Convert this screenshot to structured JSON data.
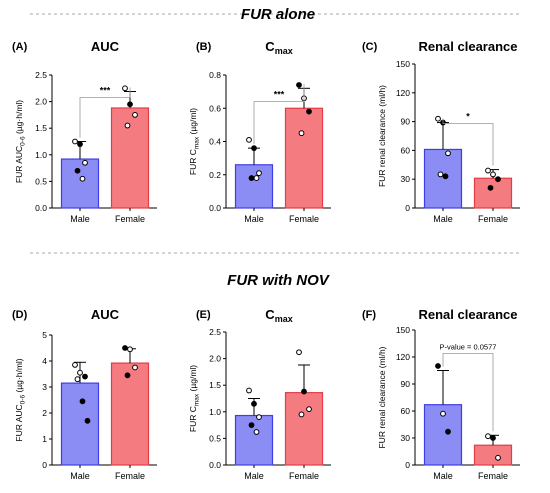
{
  "section_titles": [
    "FUR alone",
    "FUR with NOV"
  ],
  "colors": {
    "male_fill": "#8c8cf5",
    "male_edge": "#3e3ee6",
    "female_fill": "#f47c80",
    "female_edge": "#e53b44"
  },
  "chart_data": [
    {
      "type": "bar",
      "panel": "(A)",
      "title": "AUC",
      "title_sub": "",
      "ylabel_main": "FUR AUC",
      "ylabel_sub": "0-6",
      "ylabel_unit": " (µg·h/ml)",
      "categories": [
        "Male",
        "Female"
      ],
      "ylim": [
        0,
        2.5
      ],
      "yticks": [
        "0.0",
        "0.5",
        "1.0",
        "1.5",
        "2.0",
        "2.5"
      ],
      "values": [
        0.92,
        1.88
      ],
      "sd": [
        0.33,
        0.31
      ],
      "points": [
        [
          {
            "y": 1.25,
            "filled": false
          },
          {
            "y": 1.2,
            "filled": true
          },
          {
            "y": 0.85,
            "filled": false
          },
          {
            "y": 0.7,
            "filled": true
          },
          {
            "y": 0.55,
            "filled": false
          }
        ],
        [
          {
            "y": 2.25,
            "filled": false
          },
          {
            "y": 1.95,
            "filled": true
          },
          {
            "y": 1.75,
            "filled": false
          },
          {
            "y": 1.55,
            "filled": false
          }
        ]
      ],
      "sig": {
        "label": "***",
        "y": 2.08
      }
    },
    {
      "type": "bar",
      "panel": "(B)",
      "title": "C",
      "title_sub": "max",
      "ylabel_main": "FUR C",
      "ylabel_sub": "max",
      "ylabel_unit": " (µg/ml)",
      "categories": [
        "Male",
        "Female"
      ],
      "ylim": [
        0,
        0.8
      ],
      "yticks": [
        "0.0",
        "0.2",
        "0.4",
        "0.6",
        "0.8"
      ],
      "values": [
        0.26,
        0.6
      ],
      "sd": [
        0.1,
        0.12
      ],
      "points": [
        [
          {
            "y": 0.41,
            "filled": false
          },
          {
            "y": 0.36,
            "filled": true
          },
          {
            "y": 0.21,
            "filled": false
          },
          {
            "y": 0.18,
            "filled": true
          },
          {
            "y": 0.18,
            "filled": false
          }
        ],
        [
          {
            "y": 0.74,
            "filled": true
          },
          {
            "y": 0.66,
            "filled": false
          },
          {
            "y": 0.58,
            "filled": true
          },
          {
            "y": 0.45,
            "filled": false
          }
        ]
      ],
      "sig": {
        "label": "***",
        "y": 0.64
      }
    },
    {
      "type": "bar",
      "panel": "(C)",
      "title": "Renal clearance",
      "title_sub": "",
      "ylabel_main": "FUR renal clearance (ml/h)",
      "ylabel_sub": "",
      "ylabel_unit": "",
      "categories": [
        "Male",
        "Female"
      ],
      "ylim": [
        0,
        150
      ],
      "yticks": [
        "0",
        "30",
        "60",
        "90",
        "120",
        "150"
      ],
      "values": [
        61,
        31
      ],
      "sd": [
        28,
        9
      ],
      "points": [
        [
          {
            "y": 93,
            "filled": false
          },
          {
            "y": 89,
            "filled": true
          },
          {
            "y": 57,
            "filled": false
          },
          {
            "y": 35,
            "filled": false
          },
          {
            "y": 33,
            "filled": true
          }
        ],
        [
          {
            "y": 39,
            "filled": false
          },
          {
            "y": 35,
            "filled": false
          },
          {
            "y": 30,
            "filled": true
          },
          {
            "y": 21,
            "filled": true
          }
        ]
      ],
      "sig": {
        "label": "*",
        "y": 88
      }
    },
    {
      "type": "bar",
      "panel": "(D)",
      "title": "AUC",
      "title_sub": "",
      "ylabel_main": "FUR AUC",
      "ylabel_sub": "0-6",
      "ylabel_unit": " (µg·h/ml)",
      "categories": [
        "Male",
        "Female"
      ],
      "ylim": [
        0,
        5
      ],
      "yticks": [
        "0",
        "1",
        "2",
        "3",
        "4",
        "5"
      ],
      "values": [
        3.15,
        3.92
      ],
      "sd": [
        0.8,
        0.55
      ],
      "points": [
        [
          {
            "y": 3.85,
            "filled": false
          },
          {
            "y": 3.55,
            "filled": false
          },
          {
            "y": 3.4,
            "filled": true
          },
          {
            "y": 3.3,
            "filled": false
          },
          {
            "y": 2.45,
            "filled": true
          },
          {
            "y": 1.7,
            "filled": true
          }
        ],
        [
          {
            "y": 4.5,
            "filled": true
          },
          {
            "y": 4.45,
            "filled": false
          },
          {
            "y": 3.75,
            "filled": false
          },
          {
            "y": 3.45,
            "filled": true
          }
        ]
      ],
      "sig": null
    },
    {
      "type": "bar",
      "panel": "(E)",
      "title": "C",
      "title_sub": "max",
      "ylabel_main": "FUR C",
      "ylabel_sub": "max",
      "ylabel_unit": " (µg/ml)",
      "categories": [
        "Male",
        "Female"
      ],
      "ylim": [
        0,
        2.5
      ],
      "yticks": [
        "0.0",
        "0.5",
        "1.0",
        "1.5",
        "2.0",
        "2.5"
      ],
      "values": [
        0.93,
        1.36
      ],
      "sd": [
        0.32,
        0.52
      ],
      "points": [
        [
          {
            "y": 1.4,
            "filled": false
          },
          {
            "y": 1.15,
            "filled": true
          },
          {
            "y": 0.9,
            "filled": false
          },
          {
            "y": 0.75,
            "filled": true
          },
          {
            "y": 0.62,
            "filled": false
          }
        ],
        [
          {
            "y": 2.12,
            "filled": false
          },
          {
            "y": 1.38,
            "filled": true
          },
          {
            "y": 1.05,
            "filled": false
          },
          {
            "y": 0.95,
            "filled": false
          }
        ]
      ],
      "sig": null
    },
    {
      "type": "bar",
      "panel": "(F)",
      "title": "Renal clearance",
      "title_sub": "",
      "ylabel_main": "FUR renal clearance (ml/h)",
      "ylabel_sub": "",
      "ylabel_unit": "",
      "categories": [
        "Male",
        "Female"
      ],
      "ylim": [
        0,
        150
      ],
      "yticks": [
        "0",
        "30",
        "60",
        "90",
        "120",
        "150"
      ],
      "values": [
        67,
        22
      ],
      "sd": [
        38,
        11
      ],
      "points": [
        [
          {
            "y": 110,
            "filled": true
          },
          {
            "y": 57,
            "filled": false
          },
          {
            "y": 37,
            "filled": true
          }
        ],
        [
          {
            "y": 32,
            "filled": false
          },
          {
            "y": 30,
            "filled": true
          },
          {
            "y": 8,
            "filled": false
          }
        ]
      ],
      "sig": {
        "label": "P-value = 0.0577",
        "y": 124
      }
    }
  ]
}
